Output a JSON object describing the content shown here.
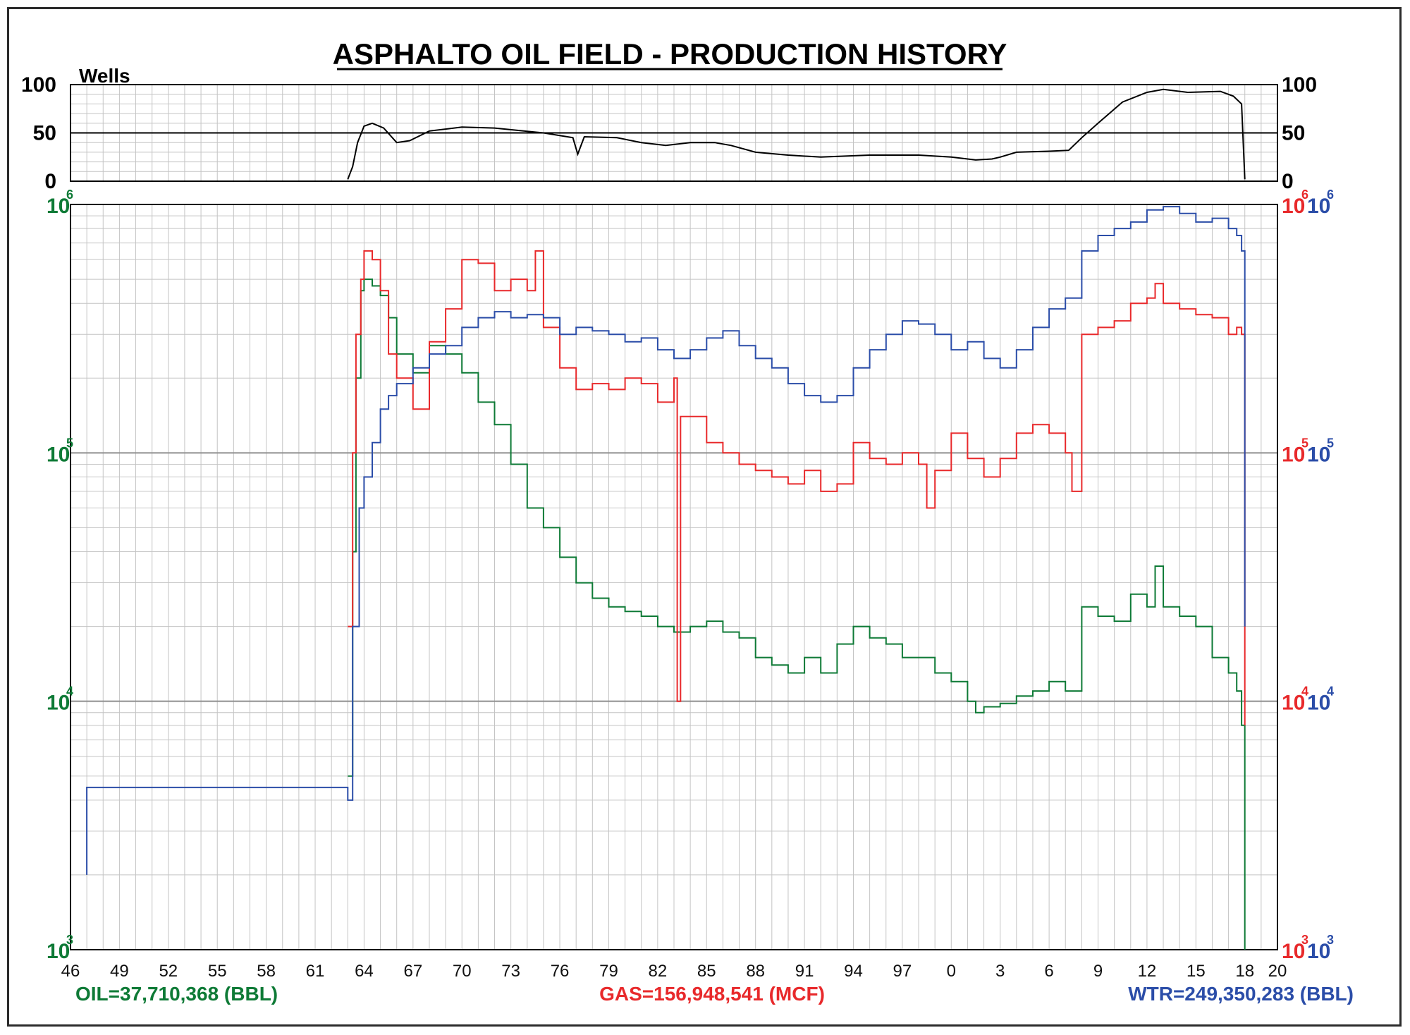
{
  "chart_data": [
    {
      "type": "line",
      "title": "ASPHALTO OIL FIELD - PRODUCTION HISTORY",
      "ylabel": "Wells",
      "ylim": [
        0,
        100
      ],
      "yticks": [
        "0",
        "50",
        "100"
      ],
      "grid": true,
      "series": [
        {
          "name": "Wells",
          "color": "#000000",
          "x": [
            1963.0,
            1963.3,
            1963.6,
            1964.0,
            1964.5,
            1965.2,
            1966.0,
            1966.8,
            1968.0,
            1970.0,
            1972.0,
            1975.0,
            1976.8,
            1977.1,
            1977.5,
            1979.5,
            1981.0,
            1982.5,
            1984.0,
            1985.5,
            1986.5,
            1988.0,
            1990.0,
            1992.0,
            1995.0,
            1998.0,
            2000.0,
            2001.5,
            2002.5,
            2003.0,
            2004.0,
            2006.0,
            2007.2,
            2008.0,
            2009.0,
            2010.5,
            2012.0,
            2013.0,
            2014.5,
            2016.5,
            2017.3,
            2017.8,
            2018.0
          ],
          "values": [
            2,
            15,
            40,
            57,
            60,
            55,
            40,
            42,
            52,
            56,
            55,
            50,
            45,
            28,
            46,
            45,
            40,
            37,
            40,
            40,
            37,
            30,
            27,
            25,
            27,
            27,
            25,
            22,
            23,
            25,
            30,
            31,
            32,
            45,
            60,
            82,
            92,
            95,
            92,
            93,
            88,
            80,
            2
          ]
        }
      ]
    },
    {
      "type": "line",
      "y_scale": "log",
      "ylim": [
        1000,
        1000000
      ],
      "xlim": [
        1946,
        2020
      ],
      "grid": true,
      "xticks": [
        "46",
        "49",
        "52",
        "55",
        "58",
        "61",
        "64",
        "67",
        "70",
        "73",
        "76",
        "79",
        "82",
        "85",
        "88",
        "91",
        "94",
        "97",
        "0",
        "3",
        "6",
        "9",
        "12",
        "15",
        "18",
        "20"
      ],
      "left_axis": {
        "color": "#0e7a36",
        "ticks": [
          {
            "base": "10",
            "exp": "3"
          },
          {
            "base": "10",
            "exp": "4"
          },
          {
            "base": "10",
            "exp": "5"
          },
          {
            "base": "10",
            "exp": "6"
          }
        ]
      },
      "right_axis": {
        "ticks": [
          {
            "base_a": "10",
            "exp_a": "3",
            "base_b": "10",
            "exp_b": "3"
          },
          {
            "base_a": "10",
            "exp_a": "4",
            "base_b": "10",
            "exp_b": "4"
          },
          {
            "base_a": "10",
            "exp_a": "5",
            "base_b": "10",
            "exp_b": "5"
          },
          {
            "base_a": "10",
            "exp_a": "6",
            "base_b": "10",
            "exp_b": "6"
          }
        ]
      },
      "series": [
        {
          "key": "oil",
          "color": "#0e7a36",
          "x": [
            1963.0,
            1963.3,
            1963.5,
            1963.8,
            1964.0,
            1964.5,
            1965.0,
            1965.5,
            1966.0,
            1967.0,
            1968.0,
            1969.0,
            1970.0,
            1971.0,
            1972.0,
            1973.0,
            1974.0,
            1975.0,
            1976.0,
            1977.0,
            1978.0,
            1979.0,
            1980.0,
            1981.0,
            1982.0,
            1983.0,
            1984.0,
            1985.0,
            1986.0,
            1987.0,
            1988.0,
            1989.0,
            1990.0,
            1991.0,
            1992.0,
            1993.0,
            1994.0,
            1995.0,
            1996.0,
            1997.0,
            1998.0,
            1999.0,
            2000.0,
            2001.0,
            2001.5,
            2002.0,
            2003.0,
            2004.0,
            2005.0,
            2006.0,
            2007.0,
            2008.0,
            2009.0,
            2010.0,
            2011.0,
            2012.0,
            2012.5,
            2013.0,
            2014.0,
            2015.0,
            2016.0,
            2017.0,
            2017.5,
            2017.8,
            2018.0
          ],
          "values": [
            5000,
            40000,
            200000,
            450000,
            500000,
            470000,
            430000,
            350000,
            250000,
            210000,
            270000,
            250000,
            210000,
            160000,
            130000,
            90000,
            60000,
            50000,
            38000,
            30000,
            26000,
            24000,
            23000,
            22000,
            20000,
            19000,
            20000,
            21000,
            19000,
            18000,
            15000,
            14000,
            13000,
            15000,
            13000,
            17000,
            20000,
            18000,
            17000,
            15000,
            15000,
            13000,
            12000,
            10000,
            9000,
            9500,
            9800,
            10500,
            11000,
            12000,
            11000,
            24000,
            22000,
            21000,
            27000,
            24000,
            35000,
            24000,
            22000,
            20000,
            15000,
            13000,
            11000,
            8000,
            1000
          ]
        },
        {
          "key": "gas",
          "color": "#e8292b",
          "x": [
            1963.0,
            1963.3,
            1963.5,
            1963.8,
            1964.0,
            1964.5,
            1965.0,
            1965.5,
            1966.0,
            1967.0,
            1968.0,
            1969.0,
            1970.0,
            1971.0,
            1972.0,
            1973.0,
            1974.0,
            1974.5,
            1975.0,
            1976.0,
            1977.0,
            1978.0,
            1979.0,
            1980.0,
            1981.0,
            1982.0,
            1983.0,
            1983.2,
            1983.4,
            1984.0,
            1985.0,
            1986.0,
            1987.0,
            1988.0,
            1989.0,
            1990.0,
            1991.0,
            1992.0,
            1993.0,
            1994.0,
            1995.0,
            1996.0,
            1997.0,
            1998.0,
            1998.5,
            1999.0,
            2000.0,
            2001.0,
            2002.0,
            2003.0,
            2004.0,
            2005.0,
            2006.0,
            2007.0,
            2007.4,
            2008.0,
            2009.0,
            2010.0,
            2011.0,
            2012.0,
            2012.5,
            2013.0,
            2014.0,
            2015.0,
            2016.0,
            2017.0,
            2017.5,
            2017.8,
            2018.0
          ],
          "values": [
            20000,
            100000,
            300000,
            500000,
            650000,
            600000,
            450000,
            250000,
            200000,
            150000,
            280000,
            380000,
            600000,
            580000,
            450000,
            500000,
            450000,
            650000,
            320000,
            220000,
            180000,
            190000,
            180000,
            200000,
            190000,
            160000,
            200000,
            10000,
            140000,
            140000,
            110000,
            100000,
            90000,
            85000,
            80000,
            75000,
            85000,
            70000,
            75000,
            110000,
            95000,
            90000,
            100000,
            90000,
            60000,
            85000,
            120000,
            95000,
            80000,
            95000,
            120000,
            130000,
            120000,
            100000,
            70000,
            300000,
            320000,
            340000,
            400000,
            420000,
            480000,
            400000,
            380000,
            360000,
            350000,
            300000,
            320000,
            300000,
            8000
          ]
        },
        {
          "key": "water",
          "color": "#2b4da8",
          "x": [
            1947.0,
            1947.0,
            1963.0,
            1963.3,
            1963.7,
            1964.0,
            1964.5,
            1965.0,
            1965.5,
            1966.0,
            1967.0,
            1968.0,
            1969.0,
            1970.0,
            1971.0,
            1972.0,
            1973.0,
            1974.0,
            1975.0,
            1976.0,
            1977.0,
            1978.0,
            1979.0,
            1980.0,
            1981.0,
            1982.0,
            1983.0,
            1984.0,
            1985.0,
            1986.0,
            1987.0,
            1988.0,
            1989.0,
            1990.0,
            1991.0,
            1992.0,
            1993.0,
            1994.0,
            1995.0,
            1996.0,
            1997.0,
            1998.0,
            1999.0,
            2000.0,
            2001.0,
            2002.0,
            2003.0,
            2004.0,
            2005.0,
            2006.0,
            2007.0,
            2008.0,
            2009.0,
            2010.0,
            2011.0,
            2012.0,
            2013.0,
            2014.0,
            2015.0,
            2016.0,
            2017.0,
            2017.5,
            2017.8,
            2018.0
          ],
          "values": [
            2000,
            4500,
            4000,
            20000,
            60000,
            80000,
            110000,
            150000,
            170000,
            190000,
            220000,
            250000,
            270000,
            320000,
            350000,
            370000,
            350000,
            360000,
            350000,
            300000,
            320000,
            310000,
            300000,
            280000,
            290000,
            260000,
            240000,
            260000,
            290000,
            310000,
            270000,
            240000,
            220000,
            190000,
            170000,
            160000,
            170000,
            220000,
            260000,
            300000,
            340000,
            330000,
            300000,
            260000,
            280000,
            240000,
            220000,
            260000,
            320000,
            380000,
            420000,
            650000,
            750000,
            800000,
            850000,
            950000,
            980000,
            920000,
            850000,
            880000,
            800000,
            750000,
            650000,
            20000
          ]
        }
      ]
    }
  ],
  "totals": {
    "oil": "OIL=37,710,368 (BBL)",
    "gas": "GAS=156,948,541 (MCF)",
    "water": "WTR=249,350,283 (BBL)"
  }
}
